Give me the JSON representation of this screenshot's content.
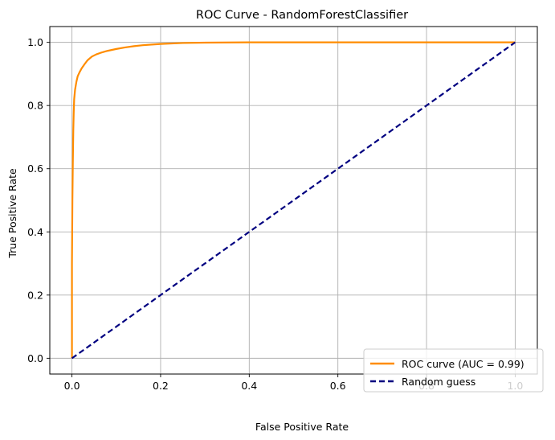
{
  "chart_data": {
    "type": "line",
    "title": "ROC Curve - RandomForestClassifier",
    "xlabel": "False Positive Rate",
    "ylabel": "True Positive Rate",
    "xlim": [
      -0.05,
      1.05
    ],
    "ylim": [
      -0.05,
      1.05
    ],
    "xticks": [
      0.0,
      0.2,
      0.4,
      0.6,
      0.8,
      1.0
    ],
    "xtick_labels": [
      "0.0",
      "0.2",
      "0.4",
      "0.6",
      "0.8",
      "1.0"
    ],
    "yticks": [
      0.0,
      0.2,
      0.4,
      0.6,
      0.8,
      1.0
    ],
    "ytick_labels": [
      "0.0",
      "0.2",
      "0.4",
      "0.6",
      "0.8",
      "1.0"
    ],
    "grid": true,
    "legend_position": "lower-right",
    "series": [
      {
        "name": "ROC curve (AUC = 0.99)",
        "color": "#ff8c00",
        "style": "solid",
        "x": [
          0.0,
          0.0,
          0.001,
          0.002,
          0.003,
          0.004,
          0.005,
          0.007,
          0.01,
          0.013,
          0.017,
          0.022,
          0.028,
          0.035,
          0.045,
          0.055,
          0.065,
          0.08,
          0.1,
          0.12,
          0.14,
          0.16,
          0.2,
          0.25,
          0.3,
          0.4,
          0.6,
          1.0
        ],
        "y": [
          0.0,
          0.3,
          0.5,
          0.62,
          0.72,
          0.78,
          0.82,
          0.85,
          0.875,
          0.893,
          0.905,
          0.918,
          0.93,
          0.943,
          0.955,
          0.962,
          0.967,
          0.973,
          0.979,
          0.984,
          0.988,
          0.991,
          0.995,
          0.998,
          0.999,
          1.0,
          1.0,
          1.0
        ]
      },
      {
        "name": "Random guess",
        "color": "#000080",
        "style": "dashed",
        "x": [
          0.0,
          1.0
        ],
        "y": [
          0.0,
          1.0
        ]
      }
    ]
  }
}
